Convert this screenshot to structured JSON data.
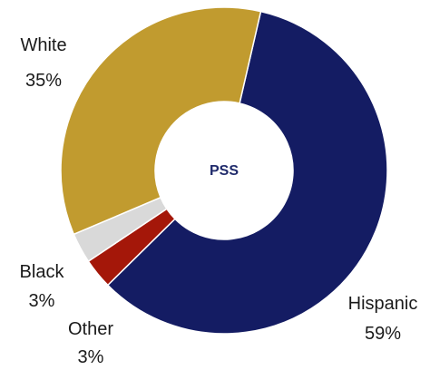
{
  "chart_data": {
    "type": "pie",
    "variant": "donut",
    "center_label": "PSS",
    "slices": [
      {
        "name": "Hispanic",
        "value": 59,
        "value_label": "59%",
        "color": "#141c63"
      },
      {
        "name": "Other",
        "value": 3,
        "value_label": "3%",
        "color": "#a41709"
      },
      {
        "name": "Black",
        "value": 3,
        "value_label": "3%",
        "color": "#d9d9d9"
      },
      {
        "name": "White",
        "value": 35,
        "value_label": "35%",
        "color": "#c19b2f"
      }
    ],
    "start_angle_deg": 13,
    "direction": "clockwise",
    "legend": "none",
    "labels_outside": true
  }
}
